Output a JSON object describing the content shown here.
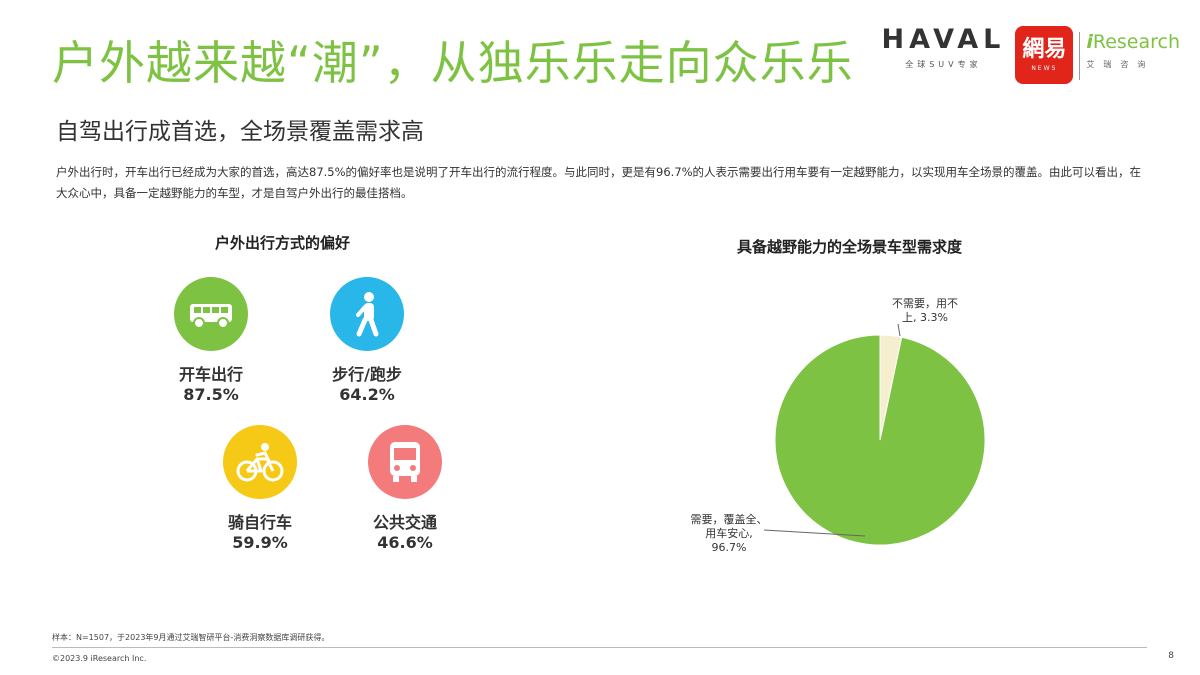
{
  "header": {
    "title": "户外越来越“潮”，从独乐乐走向众乐乐",
    "subtitle": "自驾出行成首选，全场景覆盖需求高",
    "description": "户外出行时，开车出行已经成为大家的首选，高达87.5%的偏好率也是说明了开车出行的流行程度。与此同时，更是有96.7%的人表示需要出行用车要有一定越野能力，以实现用车全场景的覆盖。由此可以看出，在大众心中，具备一定越野能力的车型，才是自驾户外出行的最佳搭档。"
  },
  "logos": {
    "haval_word": "HAVAL",
    "haval_sub": "全球SUV专家",
    "netease_main": "網易",
    "netease_sub": "NEWS",
    "iresearch_main": "iResearch",
    "iresearch_sub": "艾瑞咨询"
  },
  "left_chart": {
    "title": "户外出行方式的偏好",
    "items": [
      {
        "label": "开车出行",
        "pct": "87.5%",
        "icon": "car-icon",
        "color": "#7dc242"
      },
      {
        "label": "步行/跑步",
        "pct": "64.2%",
        "icon": "walking-icon",
        "color": "#29b6e8"
      },
      {
        "label": "骑自行车",
        "pct": "59.9%",
        "icon": "bicycle-icon",
        "color": "#f5c915"
      },
      {
        "label": "公共交通",
        "pct": "46.6%",
        "icon": "bus-icon",
        "color": "#f47b7b"
      }
    ]
  },
  "chart_data": [
    {
      "type": "bar",
      "title": "户外出行方式的偏好",
      "categories": [
        "开车出行",
        "步行/跑步",
        "骑自行车",
        "公共交通"
      ],
      "values": [
        87.5,
        64.2,
        59.9,
        46.6
      ],
      "unit": "%"
    },
    {
      "type": "pie",
      "title": "具备越野能力的全场景车型需求度",
      "categories": [
        "需要，覆盖全、用车安心",
        "不需要，用不上"
      ],
      "values": [
        96.7,
        3.3
      ],
      "unit": "%",
      "colors": [
        "#7dc242",
        "#f5eecf"
      ],
      "label_a": "需要，覆盖全、用车安心，96.7%",
      "label_b": "不需要，用不上，3.3%"
    }
  ],
  "pie_labels": {
    "need_line1": "需要，覆盖全、",
    "need_line2": "用车安心,",
    "need_line3": "96.7%",
    "noneed_line1": "不需要，用不",
    "noneed_line2": "上, 3.3%"
  },
  "footer": {
    "footnote": "样本：N=1507，于2023年9月通过艾瑞智研平台-消费洞察数据库调研获得。",
    "copyright": "©2023.9 iResearch Inc.",
    "page": "8"
  }
}
